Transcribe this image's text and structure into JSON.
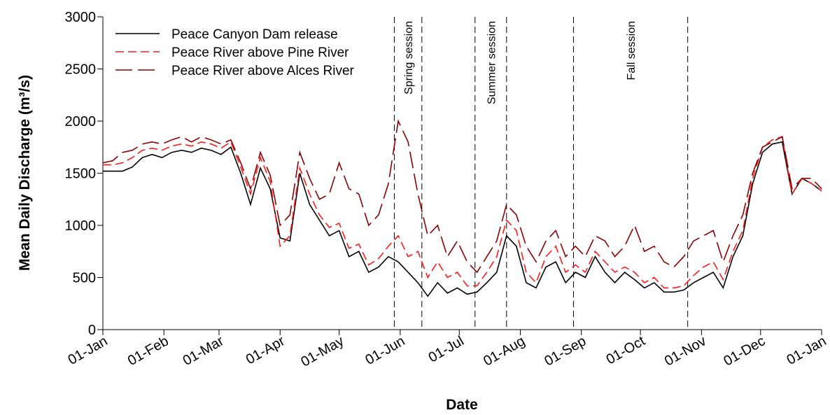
{
  "chart_data": {
    "type": "line",
    "x_label": "Date",
    "y_label": "Mean Daily Discharge (m³/s)",
    "xlim": [
      0,
      365
    ],
    "xticks": [
      {
        "value": 0,
        "label": "01-Jan"
      },
      {
        "value": 31,
        "label": "01-Feb"
      },
      {
        "value": 59,
        "label": "01-Mar"
      },
      {
        "value": 90,
        "label": "01-Apr"
      },
      {
        "value": 120,
        "label": "01-May"
      },
      {
        "value": 151,
        "label": "01-Jun"
      },
      {
        "value": 181,
        "label": "01-Jul"
      },
      {
        "value": 212,
        "label": "01-Aug"
      },
      {
        "value": 243,
        "label": "01-Sep"
      },
      {
        "value": 273,
        "label": "01-Oct"
      },
      {
        "value": 304,
        "label": "01-Nov"
      },
      {
        "value": 334,
        "label": "01-Dec"
      },
      {
        "value": 365,
        "label": "01-Jan"
      }
    ],
    "ylim": [
      0,
      3000
    ],
    "yticks": [
      0,
      500,
      1000,
      1500,
      2000,
      2500,
      3000
    ],
    "legend": "top-left",
    "x": [
      0,
      5,
      10,
      15,
      20,
      25,
      30,
      35,
      40,
      45,
      50,
      55,
      60,
      65,
      70,
      75,
      80,
      85,
      90,
      95,
      100,
      105,
      110,
      115,
      120,
      125,
      130,
      135,
      140,
      145,
      150,
      155,
      160,
      165,
      170,
      175,
      180,
      185,
      190,
      195,
      200,
      205,
      210,
      215,
      220,
      225,
      230,
      235,
      240,
      245,
      250,
      255,
      260,
      265,
      270,
      275,
      280,
      285,
      290,
      295,
      300,
      305,
      310,
      315,
      320,
      325,
      330,
      335,
      340,
      345,
      350,
      355,
      360,
      365
    ],
    "series": [
      {
        "name": "Peace Canyon Dam release",
        "color": "#000000",
        "dash": "solid",
        "values": [
          1520,
          1520,
          1520,
          1560,
          1650,
          1680,
          1650,
          1700,
          1720,
          1700,
          1740,
          1720,
          1680,
          1750,
          1500,
          1200,
          1550,
          1350,
          880,
          850,
          1500,
          1200,
          1050,
          900,
          950,
          700,
          750,
          550,
          600,
          700,
          650,
          550,
          450,
          320,
          450,
          350,
          400,
          340,
          360,
          450,
          550,
          900,
          800,
          450,
          400,
          600,
          650,
          450,
          550,
          500,
          700,
          550,
          450,
          550,
          480,
          400,
          450,
          360,
          360,
          380,
          450,
          500,
          550,
          400,
          700,
          900,
          1400,
          1700,
          1780,
          1800,
          1300,
          1450,
          1400,
          1330
        ]
      },
      {
        "name": "Peace River above Pine River",
        "color": "#ff1a1a",
        "dash": "short",
        "values": [
          1580,
          1580,
          1600,
          1650,
          1720,
          1740,
          1720,
          1760,
          1780,
          1760,
          1800,
          1780,
          1740,
          1800,
          1560,
          1300,
          1650,
          1420,
          800,
          900,
          1550,
          1300,
          1100,
          980,
          1020,
          780,
          820,
          620,
          680,
          800,
          900,
          700,
          750,
          500,
          650,
          500,
          550,
          420,
          420,
          550,
          700,
          1050,
          950,
          550,
          450,
          700,
          800,
          550,
          620,
          550,
          750,
          650,
          550,
          600,
          550,
          450,
          500,
          400,
          400,
          420,
          520,
          600,
          650,
          480,
          750,
          950,
          1450,
          1750,
          1820,
          1850,
          1300,
          1450,
          1400,
          1330
        ]
      },
      {
        "name": "Peace River above Alces River",
        "color": "#8b0000",
        "dash": "long",
        "values": [
          1600,
          1620,
          1700,
          1720,
          1780,
          1800,
          1780,
          1820,
          1850,
          1800,
          1850,
          1820,
          1780,
          1820,
          1600,
          1350,
          1700,
          1480,
          1000,
          1100,
          1700,
          1450,
          1250,
          1300,
          1600,
          1350,
          1300,
          1000,
          1100,
          1400,
          2000,
          1800,
          1300,
          900,
          1000,
          700,
          850,
          650,
          550,
          700,
          850,
          1200,
          1100,
          800,
          650,
          850,
          950,
          700,
          800,
          700,
          900,
          850,
          700,
          800,
          1000,
          750,
          800,
          650,
          600,
          700,
          850,
          900,
          950,
          650,
          900,
          1100,
          1500,
          1750,
          1800,
          1850,
          1350,
          1450,
          1450,
          1350
        ]
      }
    ],
    "sessions": [
      {
        "name": "Spring session",
        "start": 148,
        "end": 162
      },
      {
        "name": "Summer session",
        "start": 189,
        "end": 205
      },
      {
        "name": "Fall session",
        "start": 239,
        "end": 297
      }
    ]
  }
}
